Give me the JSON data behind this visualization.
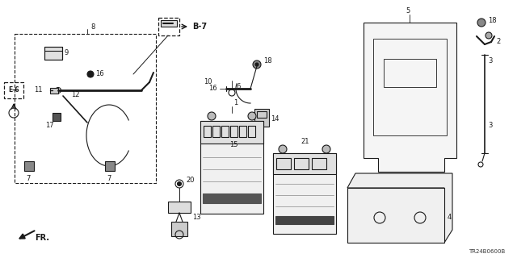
{
  "bg_color": "#ffffff",
  "line_color": "#1a1a1a",
  "fig_width": 6.4,
  "fig_height": 3.2,
  "dpi": 100,
  "diagram_code": "TR24B0600B"
}
